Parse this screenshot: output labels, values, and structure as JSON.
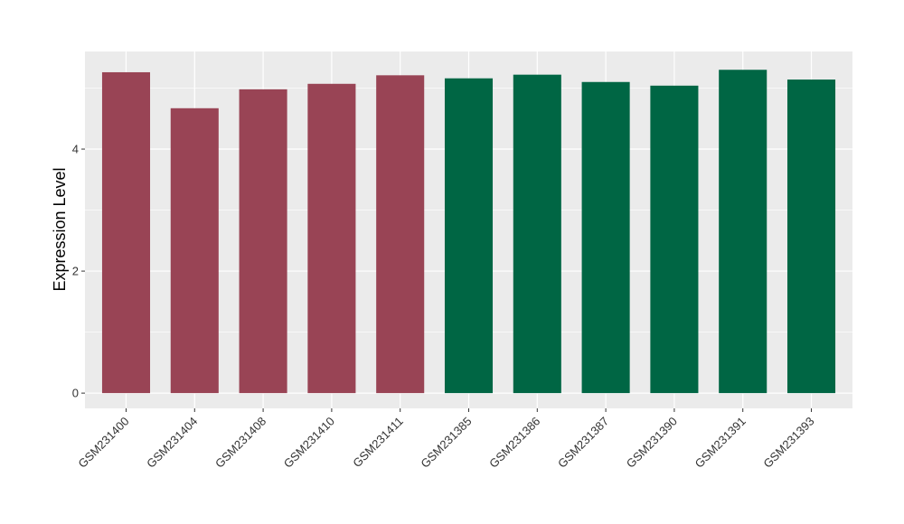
{
  "chart_data": {
    "type": "bar",
    "title": "",
    "xlabel": "",
    "ylabel": "Expression Level",
    "ylim": [
      -0.25,
      5.6
    ],
    "yticks": [
      0,
      2,
      4
    ],
    "grid": true,
    "legend": "none",
    "categories": [
      "GSM231400",
      "GSM231404",
      "GSM231408",
      "GSM231410",
      "GSM231411",
      "GSM231385",
      "GSM231386",
      "GSM231387",
      "GSM231390",
      "GSM231391",
      "GSM231393"
    ],
    "values": [
      5.26,
      4.67,
      4.98,
      5.07,
      5.21,
      5.16,
      5.22,
      5.1,
      5.04,
      5.3,
      5.14
    ],
    "colors": [
      "#994455",
      "#994455",
      "#994455",
      "#994455",
      "#994455",
      "#006644",
      "#006644",
      "#006644",
      "#006644",
      "#006644",
      "#006644"
    ],
    "panel_background": "#EBEBEB",
    "grid_color": "#FFFFFF"
  }
}
